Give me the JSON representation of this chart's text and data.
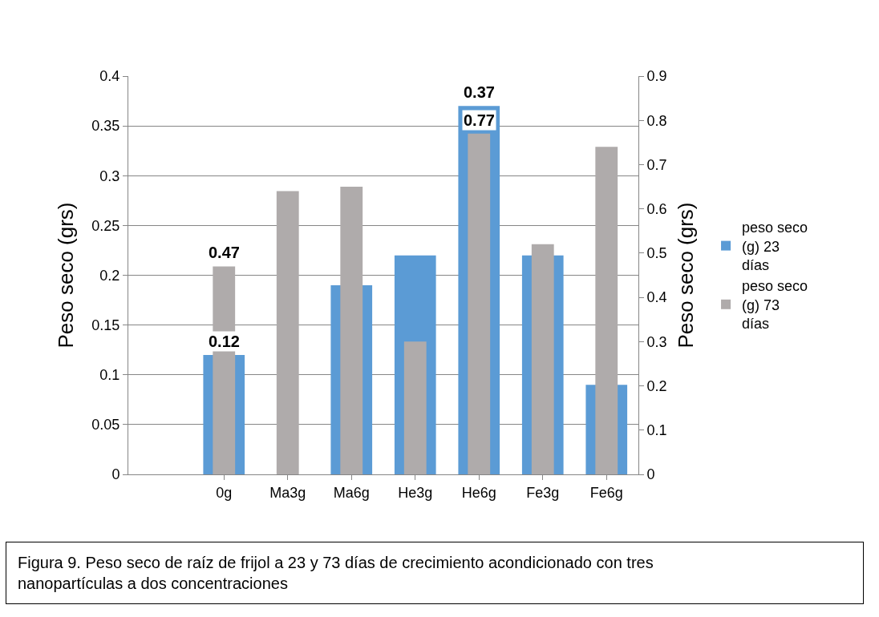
{
  "chart_data": {
    "type": "bar",
    "ylabel": "Peso seco (grs)",
    "y2label": "Peso seco (grs)",
    "categories": [
      null,
      "0g",
      "Ma3g",
      "Ma6g",
      "He3g",
      "He6g",
      "Fe3g",
      "Fe6g"
    ],
    "series": [
      {
        "name": "peso seco (g) 23 días",
        "color": "#5b9bd5",
        "values": [
          null,
          0.12,
          null,
          0.19,
          0.22,
          0.37,
          0.22,
          0.09
        ],
        "value_labels": [
          null,
          "0.12",
          null,
          null,
          null,
          "0.37",
          null,
          null
        ]
      },
      {
        "name": "peso seco (g) 73 días",
        "color": "#afabab",
        "axis": "y2",
        "values": [
          null,
          0.47,
          0.64,
          0.65,
          0.3,
          0.77,
          0.52,
          0.74
        ],
        "value_labels": [
          null,
          "0.47",
          null,
          null,
          null,
          "0.77",
          null,
          null
        ]
      }
    ],
    "ylim": [
      0,
      0.4
    ],
    "yticks": [
      0,
      0.05,
      0.1,
      0.15,
      0.2,
      0.25,
      0.3,
      0.35,
      0.4
    ],
    "y2lim": [
      0,
      0.9
    ],
    "y2ticks": [
      0,
      0.1,
      0.2,
      0.3,
      0.4,
      0.5,
      0.6,
      0.7,
      0.8,
      0.9
    ],
    "grid": "y",
    "legend": "right",
    "annotations": [
      "Figura 9. Peso seco de raíz de frijol a 23 y 73 días de crecimiento acondicionado con tres nanopartículas a dos concentraciones"
    ]
  }
}
